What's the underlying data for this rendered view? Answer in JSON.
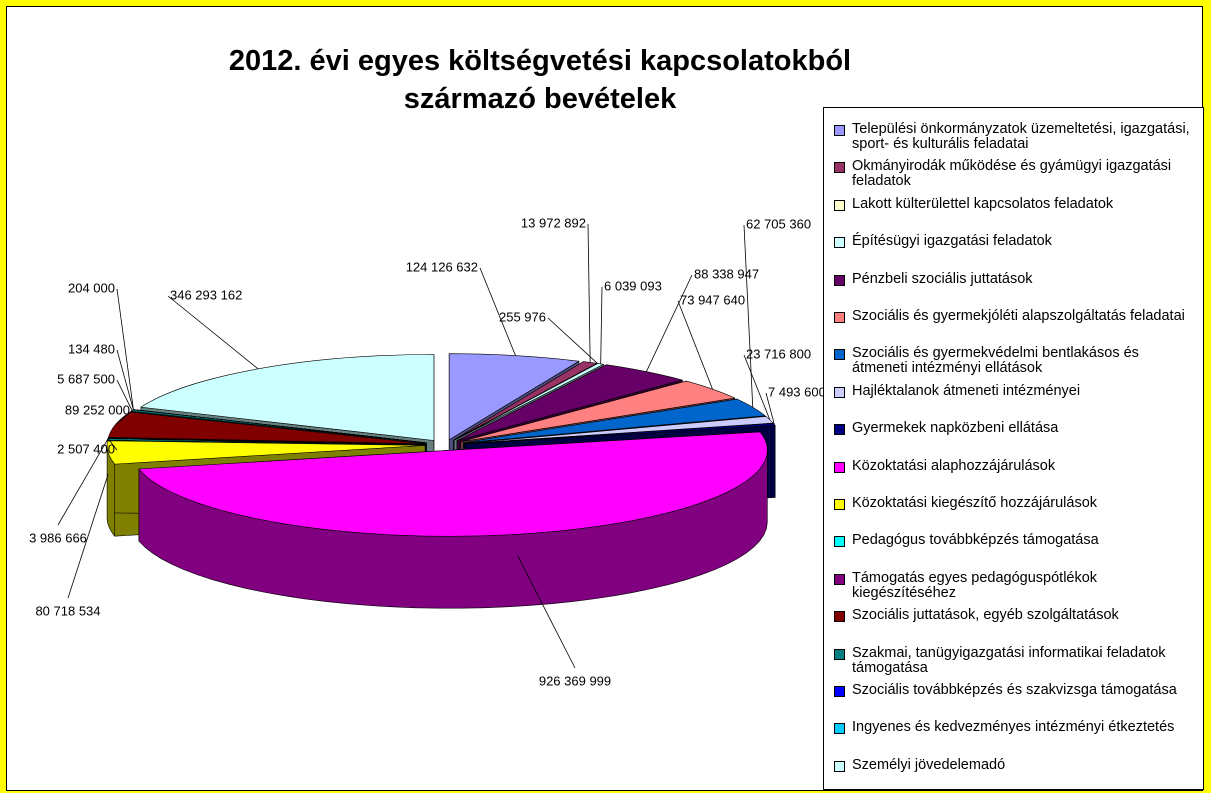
{
  "chart_data": {
    "type": "pie",
    "title": "2012. évi egyes költségvetési kapcsolatokból származó bevételek",
    "categories": [
      "Települési önkormányzatok üzemeltetési, igazgatási, sport- és kulturális feladatai",
      "Okmányirodák működése és gyámügyi igazgatási feladatok",
      "Lakott külterülettel kapcsolatos feladatok",
      "Építésügyi igazgatási feladatok",
      "Pénzbeli szociális juttatások",
      "Szociális és gyermekjóléti alapszolgáltatás feladatai",
      "Szociális és gyermekvédelmi bentlakásos és átmeneti intézményi ellátások",
      "Hajléktalanok átmeneti intézményei",
      "Gyermekek napközbeni ellátása",
      "Közoktatási alaphozzájárulások",
      "Közoktatási kiegészítő hozzájárulások",
      "Pedagógus továbbképzés támogatása",
      "Támogatás egyes pedagóguspótlékok kiegészítéséhez",
      "Szociális juttatások, egyéb szolgáltatások",
      "Szakmai, tanügyigazgatási informatikai feladatok támogatása",
      "Szociális továbbképzés és szakvizsga támogatása",
      "Ingyenes és kedvezményes intézményi étkeztetés",
      "Személyi jövedelemadó"
    ],
    "values": [
      124126632,
      13972892,
      255976,
      6039093,
      88338947,
      73947640,
      62705360,
      23716800,
      7493600,
      926369999,
      80718534,
      3986666,
      2507400,
      89252000,
      5687500,
      134480,
      204000,
      346293162
    ],
    "value_labels": [
      "124 126 632",
      "13 972 892",
      "255 976",
      "6 039 093",
      "88 338 947",
      "73 947 640",
      "62 705 360",
      "23 716 800",
      "7 493 600",
      "926 369 999",
      "80 718 534",
      "3 986 666",
      "2 507 400",
      "89 252 000",
      "5 687 500",
      "134 480",
      "204 000",
      "346 293 162"
    ],
    "colors": [
      "#9999FF",
      "#993366",
      "#FFFFCC",
      "#CCFFFF",
      "#660066",
      "#FF8080",
      "#0066CC",
      "#CCCCFF",
      "#000080",
      "#FF00FF",
      "#FFFF00",
      "#00FFFF",
      "#800080",
      "#800000",
      "#008080",
      "#0000FF",
      "#00CCFF",
      "#CCFFFF"
    ],
    "legend": "right"
  }
}
